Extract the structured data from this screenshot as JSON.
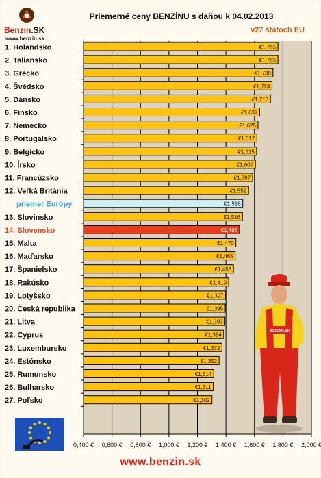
{
  "header": {
    "logo_word": "Benzin",
    "logo_suffix": ".SK",
    "logo_url": "www.benzin.sk",
    "title": "Priemerné ceny BENZÍNU s daňou k 04.02.2013",
    "subtitle": "v27 štátoch EU"
  },
  "footer": {
    "url": "www.benzin.sk"
  },
  "colors": {
    "bar": "#ffc20e",
    "bar_highlight": "#e8401c",
    "bar_average": "#ccefef",
    "label_highlight": "#e8401c",
    "label_average": "#3aa0d8",
    "plot_bg": "#ddd3bf",
    "grid": "#000000"
  },
  "mascot_badge": "BENZÍN.SK",
  "chart_data": {
    "type": "bar",
    "orientation": "horizontal",
    "xlim": [
      0.4,
      2.0
    ],
    "xticks": [
      "0,400 €",
      "0,600 €",
      "0,800 €",
      "1,000 €",
      "1,200 €",
      "1,400 €",
      "1,600 €",
      "1,800 €",
      "2,000 €"
    ],
    "grid": true,
    "categories": [
      "1. Holandsko",
      "2. Taliansko",
      "3. Grécko",
      "4. Švédsko",
      "5. Dánsko",
      "6. Fínsko",
      "7. Nemecko",
      "8. Portugalsko",
      "9. Belgicko",
      "10. Írsko",
      "11. Francúzsko",
      "12. Veľká Británia",
      "priemer Európy",
      "13. Slovinsko",
      "14. Slovensko",
      "15. Malta",
      "16. Maďarsko",
      "17. Španielsko",
      "18. Rakúsko",
      "19. Lotyšsko",
      "20. Česká republika",
      "21. Litva",
      "22. Cyprus",
      "23. Luxembursko",
      "24. Estónsko",
      "25. Rumunsko",
      "26. Bulharsko",
      "27. Poľsko"
    ],
    "values": [
      1.765,
      1.765,
      1.73,
      1.724,
      1.713,
      1.637,
      1.625,
      1.617,
      1.615,
      1.607,
      1.587,
      1.559,
      1.518,
      1.516,
      1.496,
      1.47,
      1.465,
      1.453,
      1.419,
      1.397,
      1.395,
      1.393,
      1.384,
      1.372,
      1.352,
      1.314,
      1.311,
      1.302
    ],
    "value_labels": [
      "€1,765",
      "€1,765",
      "€1,730",
      "€1,724",
      "€1,713",
      "€1,637",
      "€1,625",
      "€1,617",
      "€1,615",
      "€1,607",
      "€1,587",
      "€1,559",
      "€1,518",
      "€1,516",
      "€1,496",
      "€1,470",
      "€1,465",
      "€1,453",
      "€1,419",
      "€1,397",
      "€1,395",
      "€1,393",
      "€1,384",
      "€1,372",
      "€1,352",
      "€1,314",
      "€1,311",
      "€1,302"
    ],
    "highlight_index": 14,
    "average_index": 12
  }
}
